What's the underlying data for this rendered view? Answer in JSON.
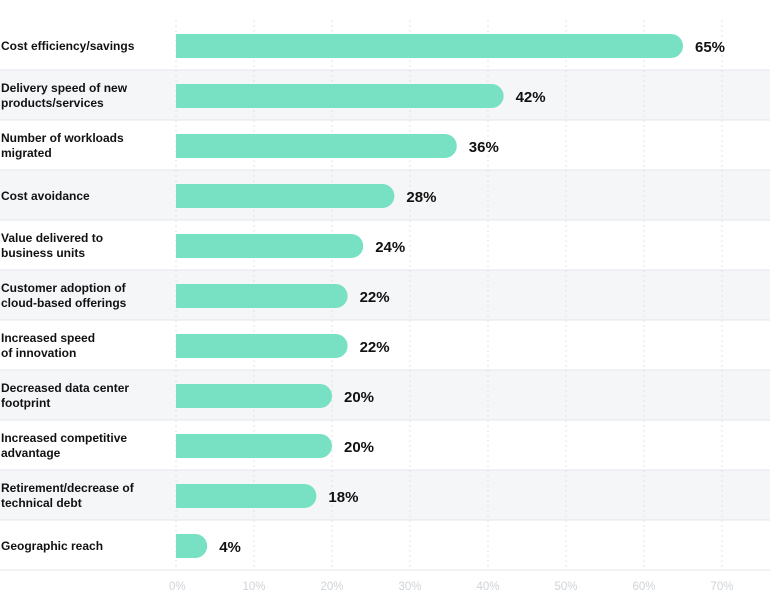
{
  "chart_data": {
    "type": "bar",
    "orientation": "horizontal",
    "categories": [
      [
        "Cost efficiency/savings"
      ],
      [
        "Delivery speed of new",
        "products/services"
      ],
      [
        "Number of workloads",
        "migrated"
      ],
      [
        "Cost avoidance"
      ],
      [
        "Value delivered to",
        "business units"
      ],
      [
        "Customer adoption of",
        "cloud-based offerings"
      ],
      [
        "Increased speed",
        "of innovation"
      ],
      [
        "Decreased data center",
        "footprint"
      ],
      [
        "Increased competitive",
        "advantage"
      ],
      [
        "Retirement/decrease of",
        "technical debt"
      ],
      [
        "Geographic reach"
      ]
    ],
    "values": [
      65,
      42,
      36,
      28,
      24,
      22,
      22,
      20,
      20,
      18,
      4
    ],
    "value_labels": [
      "65%",
      "42%",
      "36%",
      "28%",
      "24%",
      "22%",
      "22%",
      "20%",
      "20%",
      "18%",
      "4%"
    ],
    "xticks": [
      "0%",
      "10%",
      "20%",
      "30%",
      "40%",
      "50%",
      "60%",
      "70%"
    ],
    "xlim": [
      0,
      70
    ],
    "grid": "vertical dashed",
    "colors": {
      "bar": "#78e0c3",
      "alt_row": "#f5f6f8",
      "row_divider": "#e4e7eb",
      "grid": "#e0e3e7",
      "tick": "#cfd3d8",
      "text": "#111111"
    }
  }
}
